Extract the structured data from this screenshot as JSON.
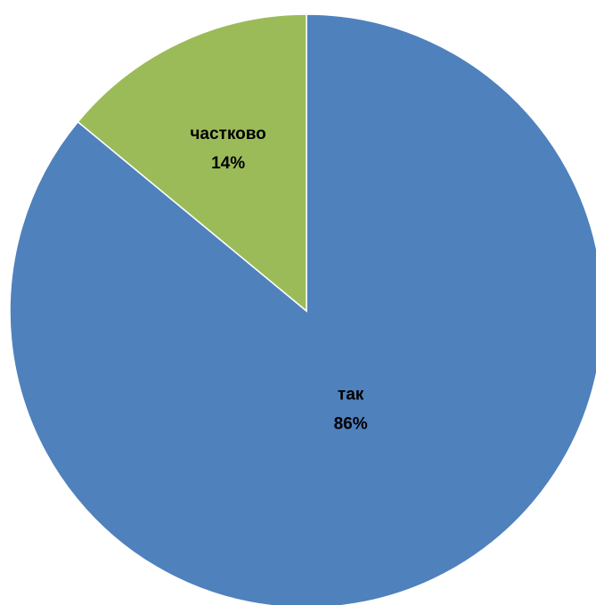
{
  "chart_data": {
    "type": "pie",
    "title": "",
    "categories": [
      "так",
      "частково"
    ],
    "values": [
      86,
      14
    ],
    "value_labels": [
      "86%",
      "14%"
    ],
    "colors": [
      "#4F81BD",
      "#9BBB59"
    ],
    "start_angle": "12 o'clock",
    "direction": "clockwise",
    "legend": "none",
    "labels_inside": true
  }
}
